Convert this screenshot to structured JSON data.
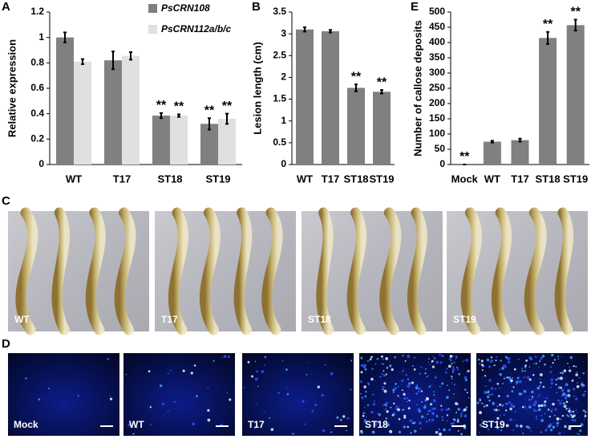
{
  "chart_data": [
    {
      "type": "bar",
      "panel": "A",
      "ylabel": "Relative expression",
      "categories": [
        "WT",
        "T17",
        "ST18",
        "ST19"
      ],
      "series": [
        {
          "name": "PsCRN108",
          "color": "#808080",
          "values": [
            1.0,
            0.82,
            0.385,
            0.32
          ],
          "errors": [
            0.04,
            0.07,
            0.02,
            0.045
          ],
          "significance": [
            null,
            null,
            "**",
            "**"
          ]
        },
        {
          "name": "PsCRN112a/b/c",
          "color": "#e0e0e0",
          "values": [
            0.81,
            0.855,
            0.385,
            0.36
          ],
          "errors": [
            0.02,
            0.03,
            0.01,
            0.04
          ],
          "significance": [
            null,
            null,
            "**",
            "**"
          ]
        }
      ],
      "ylim": [
        0,
        1.2
      ],
      "yticks": [
        0,
        0.2,
        0.4,
        0.6,
        0.8,
        1,
        1.2
      ],
      "legend": "top-right"
    },
    {
      "type": "bar",
      "panel": "B",
      "ylabel": "Lesion length (cm)",
      "categories": [
        "WT",
        "T17",
        "ST18",
        "ST19"
      ],
      "color": "#808080",
      "values": [
        3.1,
        3.06,
        1.76,
        1.67
      ],
      "errors": [
        0.05,
        0.03,
        0.08,
        0.04
      ],
      "significance": [
        null,
        null,
        "**",
        "**"
      ],
      "ylim": [
        0,
        3.5
      ],
      "yticks": [
        0,
        0.5,
        1,
        1.5,
        2,
        2.5,
        3,
        3.5
      ]
    },
    {
      "type": "bar",
      "panel": "E",
      "ylabel": "Number of callose deposits",
      "categories": [
        "Mock",
        "WT",
        "T17",
        "ST18",
        "ST19"
      ],
      "color": "#808080",
      "values": [
        0,
        75,
        80,
        415,
        457
      ],
      "errors": [
        0,
        3,
        5,
        20,
        18
      ],
      "significance": [
        "**",
        null,
        null,
        "**",
        "**"
      ],
      "ylim": [
        0,
        500
      ],
      "yticks": [
        0,
        50,
        100,
        150,
        200,
        250,
        300,
        350,
        400,
        450,
        500
      ]
    }
  ],
  "panel_c": {
    "letter": "C",
    "labels": [
      "WT",
      "T17",
      "ST18",
      "ST19"
    ]
  },
  "panel_d": {
    "letter": "D",
    "labels": [
      "Mock",
      "WT",
      "T17",
      "ST18",
      "ST19"
    ]
  }
}
